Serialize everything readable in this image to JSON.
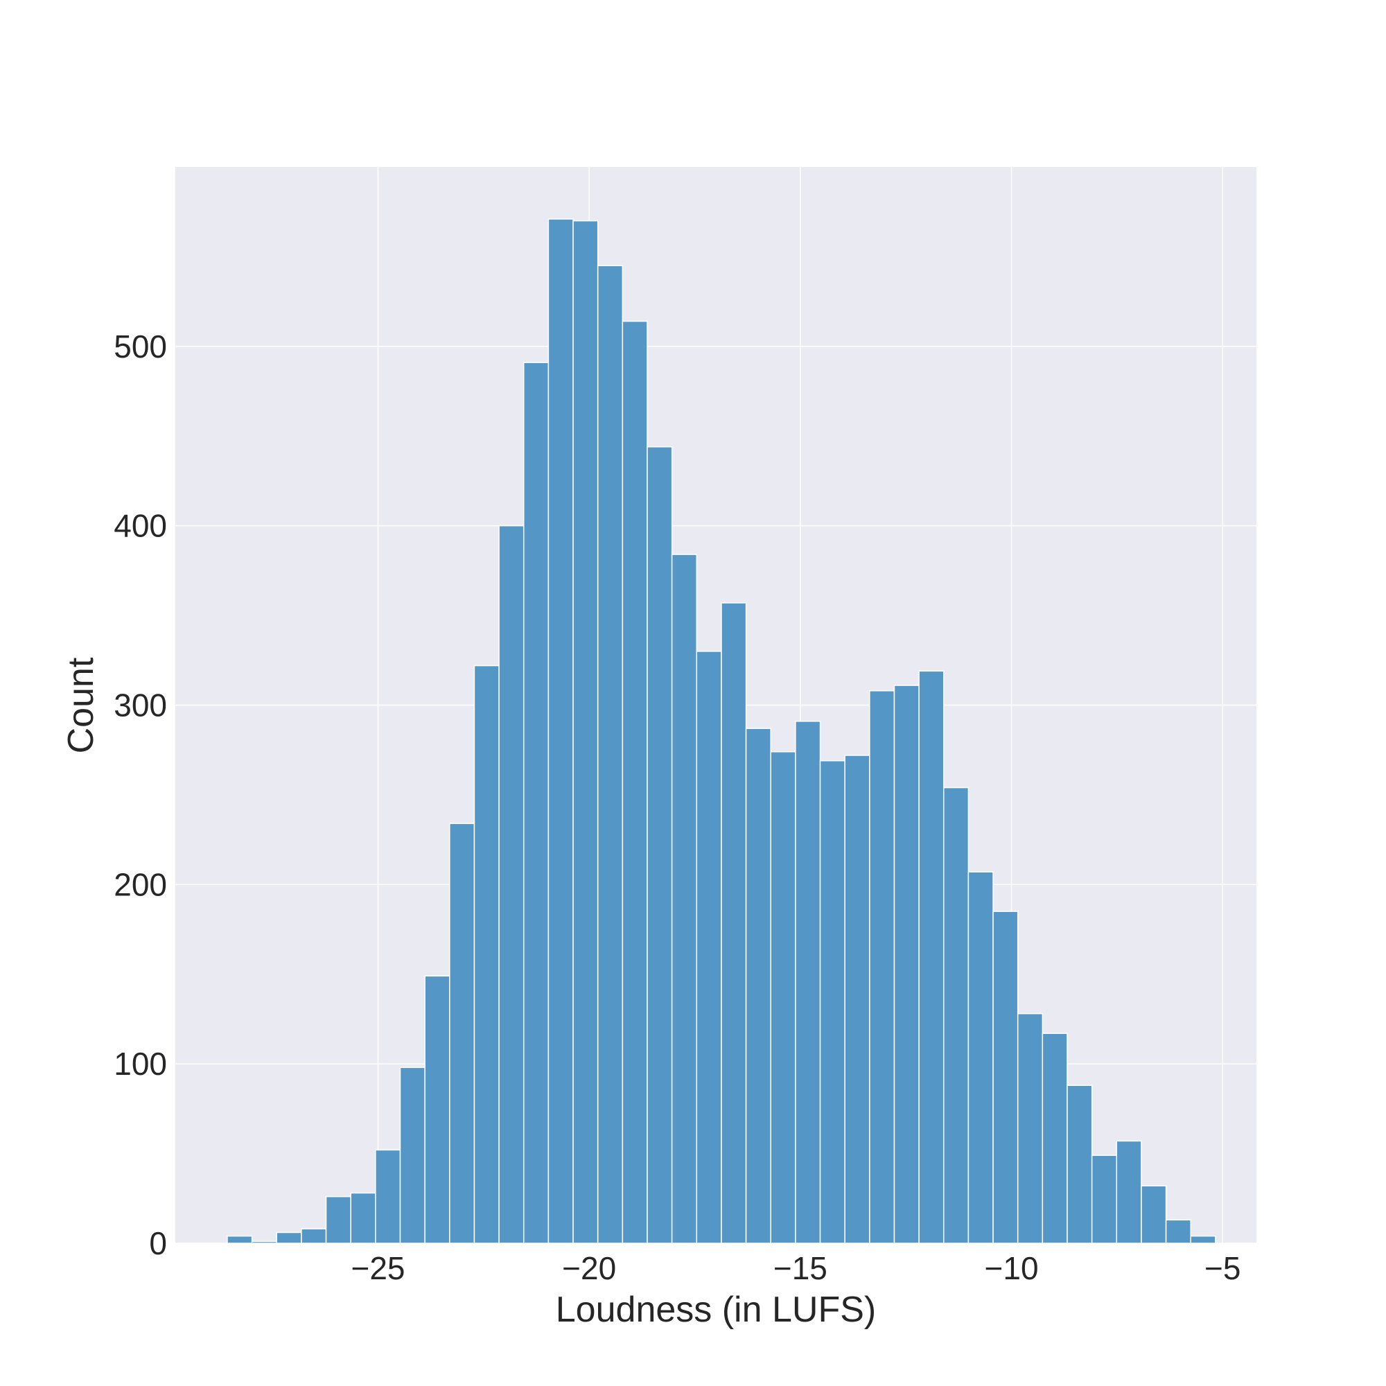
{
  "chart_data": {
    "type": "bar",
    "subtype": "histogram",
    "title": "",
    "xlabel": "Loudness (in LUFS)",
    "ylabel": "Count",
    "xlim": [
      -29.8,
      -4.2
    ],
    "ylim": [
      0,
      600
    ],
    "xticks": [
      -25,
      -20,
      -15,
      -10,
      -5
    ],
    "xtick_labels": [
      "−25",
      "−20",
      "−15",
      "−10",
      "−5"
    ],
    "yticks": [
      0,
      100,
      200,
      300,
      400,
      500
    ],
    "ytick_labels": [
      "0",
      "100",
      "200",
      "300",
      "400",
      "500"
    ],
    "grid": true,
    "background_color": "#eaeaf2",
    "bar_color": "#5496c6",
    "bin_start": -28.57,
    "bin_width": 0.585,
    "values": [
      4,
      1,
      6,
      8,
      26,
      28,
      52,
      98,
      149,
      234,
      322,
      400,
      491,
      571,
      570,
      545,
      514,
      444,
      384,
      330,
      357,
      287,
      274,
      291,
      269,
      272,
      308,
      311,
      319,
      254,
      207,
      185,
      128,
      117,
      88,
      49,
      57,
      32,
      13,
      4
    ]
  }
}
